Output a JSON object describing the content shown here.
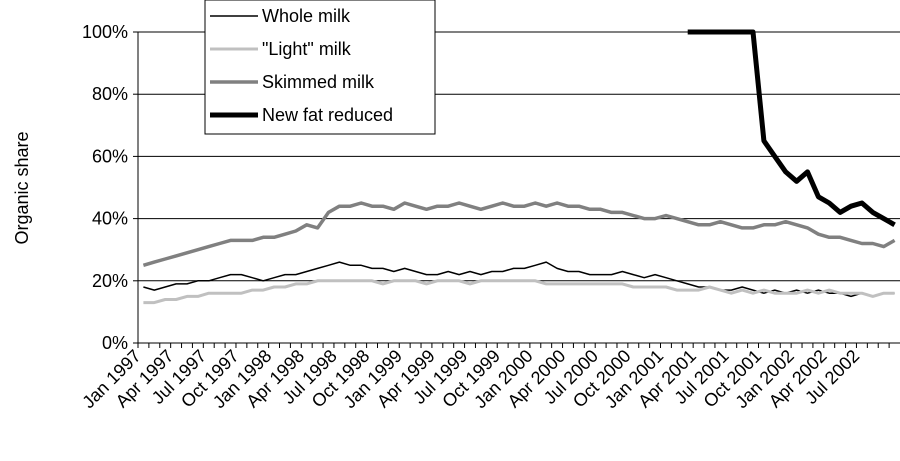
{
  "chart_data": {
    "type": "line",
    "y_label": "Organic share",
    "categories": [
      "Jan 1997",
      null,
      null,
      "Apr 1997",
      null,
      null,
      "Jul 1997",
      null,
      null,
      "Oct 1997",
      null,
      null,
      "Jan 1998",
      null,
      null,
      "Apr 1998",
      null,
      null,
      "Jul 1998",
      null,
      null,
      "Oct 1998",
      null,
      null,
      "Jan 1999",
      null,
      null,
      "Apr 1999",
      null,
      null,
      "Jul 1999",
      null,
      null,
      "Oct 1999",
      null,
      null,
      "Jan 2000",
      null,
      null,
      "Apr 2000",
      null,
      null,
      "Jul 2000",
      null,
      null,
      "Oct 2000",
      null,
      null,
      "Jan 2001",
      null,
      null,
      "Apr 2001",
      null,
      null,
      "Jul 2001",
      null,
      null,
      "Oct 2001",
      null,
      null,
      "Jan 2002",
      null,
      null,
      "Apr 2002",
      null,
      null,
      "Jul 2002",
      null,
      null,
      null
    ],
    "series": [
      {
        "name": "Whole milk",
        "color": "#000000",
        "width": 1.5,
        "values": [
          18,
          17,
          18,
          19,
          19,
          20,
          20,
          21,
          22,
          22,
          21,
          20,
          21,
          22,
          22,
          23,
          24,
          25,
          26,
          25,
          25,
          24,
          24,
          23,
          24,
          23,
          22,
          22,
          23,
          22,
          23,
          22,
          23,
          23,
          24,
          24,
          25,
          26,
          24,
          23,
          23,
          22,
          22,
          22,
          23,
          22,
          21,
          22,
          21,
          20,
          19,
          18,
          18,
          17,
          17,
          18,
          17,
          16,
          17,
          16,
          17,
          16,
          17,
          16,
          16,
          15,
          16,
          15,
          16,
          16
        ]
      },
      {
        "name": "\"Light\" milk",
        "color": "#c0c0c0",
        "width": 3,
        "values": [
          13,
          13,
          14,
          14,
          15,
          15,
          16,
          16,
          16,
          16,
          17,
          17,
          18,
          18,
          19,
          19,
          20,
          20,
          20,
          20,
          20,
          20,
          19,
          20,
          20,
          20,
          19,
          20,
          20,
          20,
          19,
          20,
          20,
          20,
          20,
          20,
          20,
          19,
          19,
          19,
          19,
          19,
          19,
          19,
          19,
          18,
          18,
          18,
          18,
          17,
          17,
          17,
          18,
          17,
          16,
          17,
          16,
          17,
          16,
          16,
          16,
          17,
          16,
          17,
          16,
          16,
          16,
          15,
          16,
          16
        ]
      },
      {
        "name": "Skimmed milk",
        "color": "#808080",
        "width": 3.5,
        "values": [
          25,
          26,
          27,
          28,
          29,
          30,
          31,
          32,
          33,
          33,
          33,
          34,
          34,
          35,
          36,
          38,
          37,
          42,
          44,
          44,
          45,
          44,
          44,
          43,
          45,
          44,
          43,
          44,
          44,
          45,
          44,
          43,
          44,
          45,
          44,
          44,
          45,
          44,
          45,
          44,
          44,
          43,
          43,
          42,
          42,
          41,
          40,
          40,
          41,
          40,
          39,
          38,
          38,
          39,
          38,
          37,
          37,
          38,
          38,
          39,
          38,
          37,
          35,
          34,
          34,
          33,
          32,
          32,
          31,
          33
        ]
      },
      {
        "name": "New fat reduced",
        "color": "#000000",
        "width": 5,
        "values": [
          null,
          null,
          null,
          null,
          null,
          null,
          null,
          null,
          null,
          null,
          null,
          null,
          null,
          null,
          null,
          null,
          null,
          null,
          null,
          null,
          null,
          null,
          null,
          null,
          null,
          null,
          null,
          null,
          null,
          null,
          null,
          null,
          null,
          null,
          null,
          null,
          null,
          null,
          null,
          null,
          null,
          null,
          null,
          null,
          null,
          null,
          null,
          null,
          null,
          null,
          100,
          100,
          100,
          100,
          100,
          100,
          100,
          65,
          60,
          55,
          52,
          55,
          47,
          45,
          42,
          44,
          45,
          42,
          40,
          38
        ]
      }
    ],
    "ylim": [
      0,
      100
    ],
    "yticks": [
      {
        "value": 0,
        "label": "0%"
      },
      {
        "value": 20,
        "label": "20%"
      },
      {
        "value": 40,
        "label": "40%"
      },
      {
        "value": 60,
        "label": "60%"
      },
      {
        "value": 80,
        "label": "80%"
      },
      {
        "value": 100,
        "label": "100%"
      }
    ],
    "grid": true,
    "legend": "top-left"
  }
}
